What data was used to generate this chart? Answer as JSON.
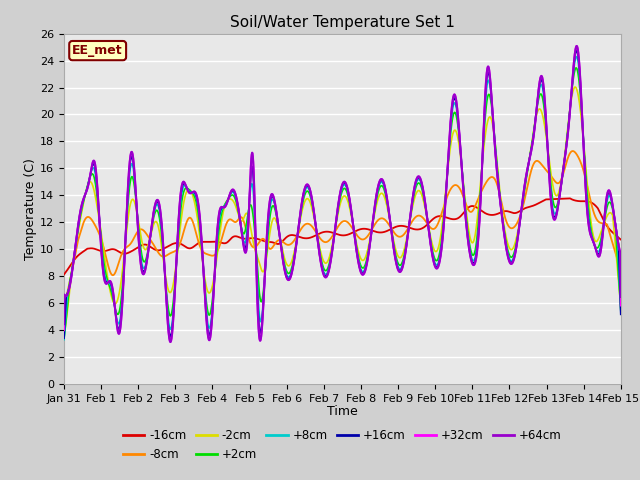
{
  "title": "Soil/Water Temperature Set 1",
  "xlabel": "Time",
  "ylabel": "Temperature (C)",
  "ylim": [
    0,
    26
  ],
  "xlim": [
    0,
    15
  ],
  "annotation_text": "EE_met",
  "annotation_bg": "#ffffc0",
  "annotation_border": "#800000",
  "series_colors": {
    "-16cm": "#dd0000",
    "-8cm": "#ff8800",
    "-2cm": "#dddd00",
    "+2cm": "#00dd00",
    "+8cm": "#00cccc",
    "+16cm": "#0000aa",
    "+32cm": "#ff00ff",
    "+64cm": "#9900cc"
  },
  "xtick_labels": [
    "Jan 31",
    "Feb 1",
    "Feb 2",
    "Feb 3",
    "Feb 4",
    "Feb 5",
    "Feb 6",
    "Feb 7",
    "Feb 8",
    "Feb 9",
    "Feb 10",
    "Feb 11",
    "Feb 12",
    "Feb 13",
    "Feb 14",
    "Feb 15"
  ],
  "xtick_positions": [
    0,
    1,
    2,
    3,
    4,
    5,
    6,
    7,
    8,
    9,
    10,
    11,
    12,
    13,
    14,
    15
  ],
  "ytick_positions": [
    0,
    2,
    4,
    6,
    8,
    10,
    12,
    14,
    16,
    18,
    20,
    22,
    24,
    26
  ]
}
